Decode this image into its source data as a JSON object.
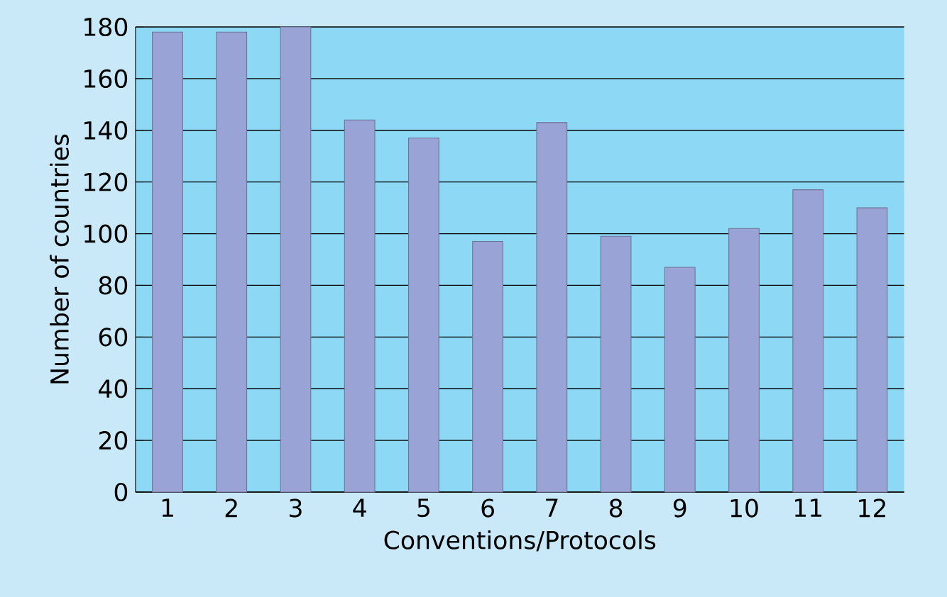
{
  "chart_data": {
    "type": "bar",
    "xlabel": "Conventions/Protocols",
    "ylabel": "Number of countries",
    "categories": [
      "1",
      "2",
      "3",
      "4",
      "5",
      "6",
      "7",
      "8",
      "9",
      "10",
      "11",
      "12"
    ],
    "values": [
      178,
      178,
      180,
      144,
      137,
      97,
      143,
      99,
      87,
      102,
      117,
      110
    ],
    "color": "#9aa3d6",
    "ylim": [
      0,
      180
    ],
    "yticks": [
      0,
      20,
      40,
      60,
      80,
      100,
      120,
      140,
      160,
      180
    ],
    "grid": "y"
  }
}
